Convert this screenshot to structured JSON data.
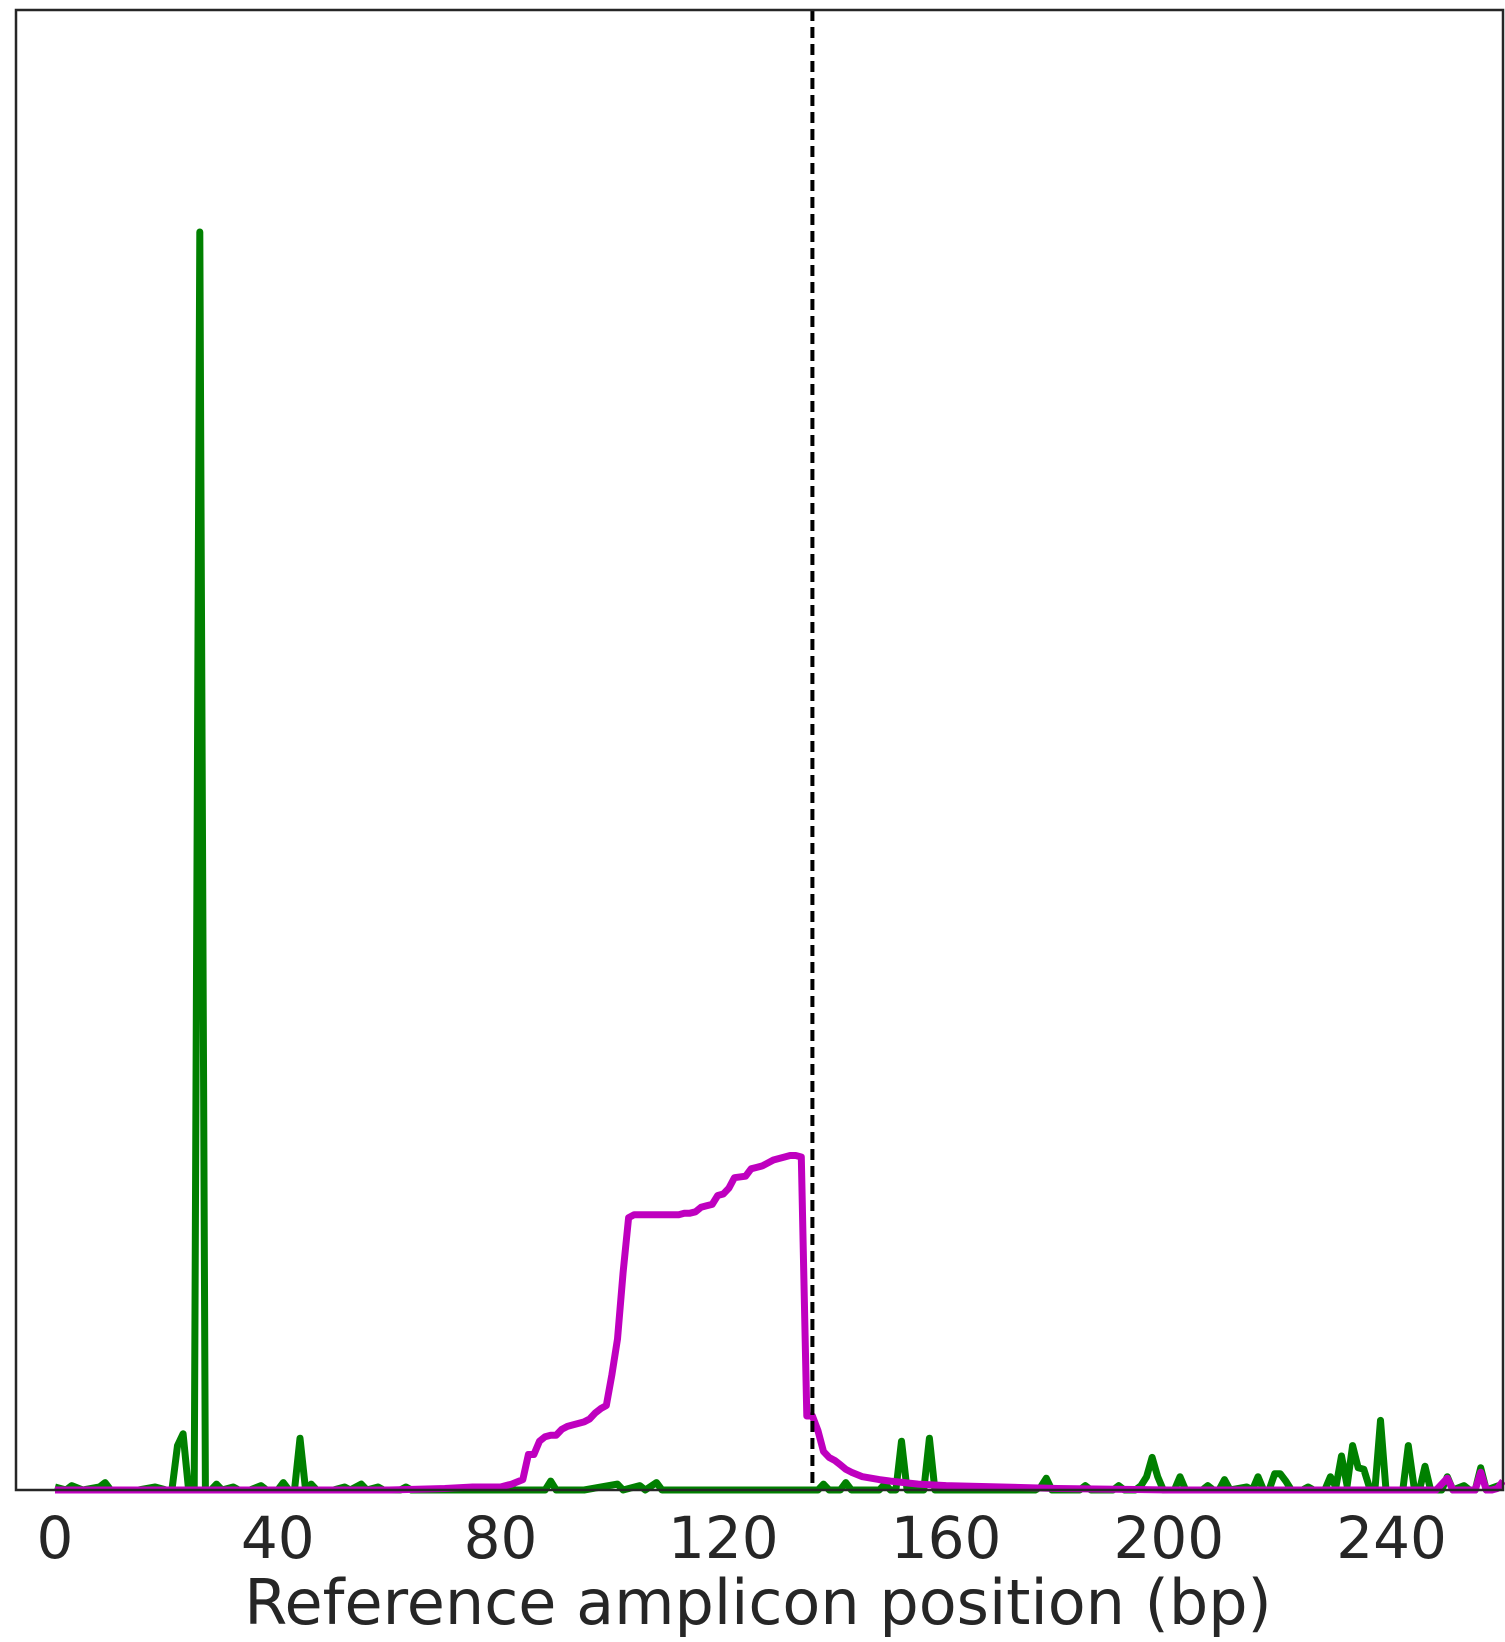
{
  "chart_data": {
    "type": "line",
    "title": "",
    "xlabel": "Reference amplicon position (bp)",
    "ylabel": "",
    "xlim": [
      -7,
      260
    ],
    "ylim": [
      0,
      100
    ],
    "x_ticks": [
      0,
      40,
      80,
      120,
      160,
      200,
      240
    ],
    "x_tick_labels": [
      "0",
      "40",
      "80",
      "120",
      "160",
      "200",
      "240"
    ],
    "grid": false,
    "vline": {
      "x": 136,
      "style": "dashed",
      "color": "#000000"
    },
    "series": [
      {
        "color": "#008000",
        "points": [
          [
            0,
            0.2
          ],
          [
            2,
            0
          ],
          [
            3,
            0.3
          ],
          [
            5,
            0
          ],
          [
            8,
            0.2
          ],
          [
            9,
            0.5
          ],
          [
            10,
            0
          ],
          [
            15,
            0
          ],
          [
            18,
            0.2
          ],
          [
            20,
            0
          ],
          [
            21,
            0
          ],
          [
            22,
            3
          ],
          [
            23,
            3.8
          ],
          [
            24,
            0
          ],
          [
            25,
            0
          ],
          [
            26,
            85
          ],
          [
            27,
            0
          ],
          [
            28,
            0
          ],
          [
            29,
            0.4
          ],
          [
            30,
            0
          ],
          [
            32,
            0.2
          ],
          [
            33,
            0
          ],
          [
            35,
            0
          ],
          [
            37,
            0.3
          ],
          [
            38,
            0
          ],
          [
            40,
            0
          ],
          [
            41,
            0.5
          ],
          [
            42,
            0
          ],
          [
            43,
            0
          ],
          [
            44,
            3.5
          ],
          [
            45,
            0
          ],
          [
            46,
            0.4
          ],
          [
            47,
            0
          ],
          [
            50,
            0
          ],
          [
            52,
            0.2
          ],
          [
            53,
            0
          ],
          [
            55,
            0.4
          ],
          [
            56,
            0
          ],
          [
            58,
            0.2
          ],
          [
            59,
            0
          ],
          [
            62,
            0
          ],
          [
            63,
            0.2
          ],
          [
            64,
            0
          ],
          [
            70,
            0
          ],
          [
            80,
            0
          ],
          [
            88,
            0
          ],
          [
            89,
            0.6
          ],
          [
            90,
            0
          ],
          [
            95,
            0
          ],
          [
            101,
            0.4
          ],
          [
            102,
            0
          ],
          [
            105,
            0.3
          ],
          [
            106,
            0
          ],
          [
            108,
            0.5
          ],
          [
            109,
            0
          ],
          [
            110,
            0
          ],
          [
            120,
            0
          ],
          [
            137,
            0
          ],
          [
            138,
            0.4
          ],
          [
            139,
            0
          ],
          [
            141,
            0
          ],
          [
            142,
            0.5
          ],
          [
            143,
            0
          ],
          [
            148,
            0
          ],
          [
            149,
            0.4
          ],
          [
            150,
            0
          ],
          [
            151,
            0
          ],
          [
            152,
            3.3
          ],
          [
            153,
            0
          ],
          [
            156,
            0
          ],
          [
            157,
            3.5
          ],
          [
            158,
            0
          ],
          [
            165,
            0
          ],
          [
            176,
            0
          ],
          [
            177,
            0.2
          ],
          [
            178,
            0.8
          ],
          [
            179,
            0
          ],
          [
            184,
            0
          ],
          [
            185,
            0.3
          ],
          [
            186,
            0
          ],
          [
            190,
            0
          ],
          [
            191,
            0.3
          ],
          [
            192,
            0
          ],
          [
            194,
            0
          ],
          [
            195,
            0.3
          ],
          [
            196,
            0.9
          ],
          [
            197,
            2.2
          ],
          [
            198,
            0.9
          ],
          [
            199,
            0
          ],
          [
            201,
            0
          ],
          [
            202,
            0.9
          ],
          [
            203,
            0
          ],
          [
            206,
            0
          ],
          [
            207,
            0.3
          ],
          [
            208,
            0
          ],
          [
            209,
            0
          ],
          [
            210,
            0.7
          ],
          [
            211,
            0
          ],
          [
            214,
            0.2
          ],
          [
            215,
            0
          ],
          [
            216,
            0.9
          ],
          [
            217,
            0
          ],
          [
            218,
            0
          ],
          [
            219,
            1.1
          ],
          [
            220,
            1.1
          ],
          [
            221,
            0.6
          ],
          [
            222,
            0
          ],
          [
            224,
            0
          ],
          [
            225,
            0.2
          ],
          [
            226,
            0
          ],
          [
            228,
            0
          ],
          [
            229,
            0.9
          ],
          [
            230,
            0.2
          ],
          [
            231,
            2.3
          ],
          [
            232,
            0.3
          ],
          [
            233,
            3.0
          ],
          [
            234,
            1.5
          ],
          [
            235,
            1.4
          ],
          [
            236,
            0.2
          ],
          [
            237,
            0
          ],
          [
            238,
            4.7
          ],
          [
            239,
            0
          ],
          [
            242,
            0
          ],
          [
            243,
            3.0
          ],
          [
            244,
            0.3
          ],
          [
            245,
            0
          ],
          [
            246,
            1.6
          ],
          [
            247,
            0
          ],
          [
            249,
            0
          ],
          [
            250,
            0.9
          ],
          [
            251,
            0
          ],
          [
            253,
            0.3
          ],
          [
            254,
            0
          ],
          [
            255,
            0
          ],
          [
            256,
            1.5
          ],
          [
            257,
            0
          ],
          [
            260,
            0.4
          ]
        ]
      },
      {
        "color": "#bf00bf",
        "points": [
          [
            0,
            0
          ],
          [
            20,
            0
          ],
          [
            60,
            0
          ],
          [
            70,
            0.1
          ],
          [
            75,
            0.2
          ],
          [
            80,
            0.2
          ],
          [
            82,
            0.4
          ],
          [
            84,
            0.7
          ],
          [
            85,
            2.4
          ],
          [
            86,
            2.4
          ],
          [
            87,
            3.3
          ],
          [
            88,
            3.6
          ],
          [
            89,
            3.7
          ],
          [
            90,
            3.7
          ],
          [
            91,
            4.1
          ],
          [
            92,
            4.3
          ],
          [
            93,
            4.4
          ],
          [
            95,
            4.6
          ],
          [
            96,
            4.8
          ],
          [
            97,
            5.2
          ],
          [
            98,
            5.5
          ],
          [
            99,
            5.7
          ],
          [
            100,
            7.8
          ],
          [
            101,
            10.2
          ],
          [
            102,
            14.7
          ],
          [
            103,
            18.4
          ],
          [
            104,
            18.6
          ],
          [
            112,
            18.6
          ],
          [
            113,
            18.7
          ],
          [
            114,
            18.7
          ],
          [
            115,
            18.8
          ],
          [
            116,
            19.1
          ],
          [
            117,
            19.2
          ],
          [
            118,
            19.3
          ],
          [
            119,
            19.9
          ],
          [
            120,
            20
          ],
          [
            121,
            20.4
          ],
          [
            122,
            21.1
          ],
          [
            124,
            21.2
          ],
          [
            125,
            21.7
          ],
          [
            126,
            21.8
          ],
          [
            127,
            21.9
          ],
          [
            128,
            22.1
          ],
          [
            129,
            22.3
          ],
          [
            130,
            22.4
          ],
          [
            131,
            22.5
          ],
          [
            132,
            22.6
          ],
          [
            133,
            22.6
          ],
          [
            134,
            22.5
          ],
          [
            135,
            5
          ],
          [
            136,
            5
          ],
          [
            137,
            4
          ],
          [
            138,
            2.6
          ],
          [
            139,
            2.2
          ],
          [
            140,
            2
          ],
          [
            141,
            1.7
          ],
          [
            142,
            1.4
          ],
          [
            143,
            1.2
          ],
          [
            145,
            0.9
          ],
          [
            148,
            0.7
          ],
          [
            150,
            0.6
          ],
          [
            155,
            0.4
          ],
          [
            160,
            0.3
          ],
          [
            170,
            0.2
          ],
          [
            180,
            0.1
          ],
          [
            200,
            0
          ],
          [
            240,
            0
          ],
          [
            248,
            0
          ],
          [
            249,
            0.4
          ],
          [
            250,
            0.8
          ],
          [
            251,
            0
          ],
          [
            255,
            0
          ],
          [
            256,
            1.2
          ],
          [
            257,
            0
          ],
          [
            258,
            0
          ],
          [
            259,
            0.1
          ],
          [
            260,
            0.6
          ]
        ]
      }
    ]
  }
}
